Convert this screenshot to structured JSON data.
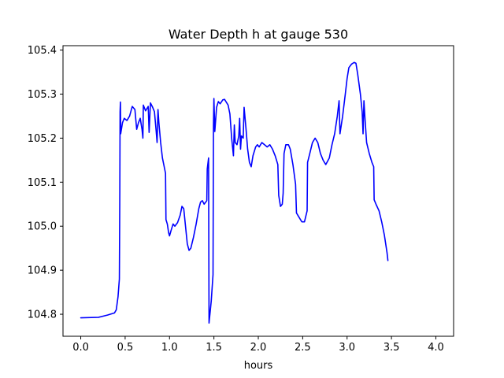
{
  "chart_data": {
    "type": "line",
    "title": "Water Depth h at gauge 530",
    "xlabel": "hours",
    "ylabel": "",
    "xlim": [
      -0.2,
      4.2
    ],
    "ylim": [
      104.75,
      105.41
    ],
    "x_ticks": [
      0.0,
      0.5,
      1.0,
      1.5,
      2.0,
      2.5,
      3.0,
      3.5,
      4.0
    ],
    "x_tick_labels": [
      "0.0",
      "0.5",
      "1.0",
      "1.5",
      "2.0",
      "2.5",
      "3.0",
      "3.5",
      "4.0"
    ],
    "y_ticks": [
      104.8,
      104.9,
      105.0,
      105.1,
      105.2,
      105.3,
      105.4
    ],
    "y_tick_labels": [
      "104.8",
      "104.9",
      "105.0",
      "105.1",
      "105.2",
      "105.3",
      "105.4"
    ],
    "grid": false,
    "series": [
      {
        "color": "#0000ff",
        "points": [
          [
            0.0,
            104.792
          ],
          [
            0.2,
            104.793
          ],
          [
            0.3,
            104.798
          ],
          [
            0.38,
            104.803
          ],
          [
            0.4,
            104.81
          ],
          [
            0.42,
            104.84
          ],
          [
            0.435,
            104.88
          ],
          [
            0.44,
            105.08
          ],
          [
            0.443,
            105.26
          ],
          [
            0.447,
            105.282
          ],
          [
            0.45,
            105.21
          ],
          [
            0.47,
            105.235
          ],
          [
            0.49,
            105.245
          ],
          [
            0.52,
            105.24
          ],
          [
            0.55,
            105.25
          ],
          [
            0.58,
            105.272
          ],
          [
            0.61,
            105.265
          ],
          [
            0.63,
            105.22
          ],
          [
            0.65,
            105.235
          ],
          [
            0.67,
            105.245
          ],
          [
            0.69,
            105.22
          ],
          [
            0.7,
            105.2
          ],
          [
            0.705,
            105.275
          ],
          [
            0.73,
            105.262
          ],
          [
            0.76,
            105.272
          ],
          [
            0.77,
            105.213
          ],
          [
            0.785,
            105.28
          ],
          [
            0.81,
            105.27
          ],
          [
            0.83,
            105.26
          ],
          [
            0.85,
            105.215
          ],
          [
            0.86,
            105.19
          ],
          [
            0.87,
            105.265
          ],
          [
            0.88,
            105.235
          ],
          [
            0.9,
            105.19
          ],
          [
            0.92,
            105.155
          ],
          [
            0.94,
            105.135
          ],
          [
            0.955,
            105.12
          ],
          [
            0.96,
            105.015
          ],
          [
            0.975,
            105.005
          ],
          [
            0.99,
            104.985
          ],
          [
            1.0,
            104.978
          ],
          [
            1.02,
            104.992
          ],
          [
            1.04,
            105.005
          ],
          [
            1.06,
            105.0
          ],
          [
            1.09,
            105.008
          ],
          [
            1.12,
            105.025
          ],
          [
            1.14,
            105.045
          ],
          [
            1.16,
            105.04
          ],
          [
            1.18,
            105.0
          ],
          [
            1.2,
            104.96
          ],
          [
            1.22,
            104.945
          ],
          [
            1.24,
            104.95
          ],
          [
            1.27,
            104.975
          ],
          [
            1.3,
            105.005
          ],
          [
            1.33,
            105.04
          ],
          [
            1.35,
            105.055
          ],
          [
            1.37,
            105.058
          ],
          [
            1.39,
            105.05
          ],
          [
            1.42,
            105.058
          ],
          [
            1.425,
            105.13
          ],
          [
            1.44,
            105.155
          ],
          [
            1.445,
            104.78
          ],
          [
            1.47,
            104.83
          ],
          [
            1.49,
            104.89
          ],
          [
            1.495,
            105.23
          ],
          [
            1.5,
            105.29
          ],
          [
            1.51,
            105.215
          ],
          [
            1.53,
            105.27
          ],
          [
            1.55,
            105.283
          ],
          [
            1.57,
            105.278
          ],
          [
            1.6,
            105.287
          ],
          [
            1.62,
            105.288
          ],
          [
            1.66,
            105.275
          ],
          [
            1.68,
            105.255
          ],
          [
            1.7,
            105.2
          ],
          [
            1.72,
            105.16
          ],
          [
            1.73,
            105.23
          ],
          [
            1.74,
            105.19
          ],
          [
            1.76,
            105.185
          ],
          [
            1.78,
            105.205
          ],
          [
            1.79,
            105.245
          ],
          [
            1.8,
            105.175
          ],
          [
            1.81,
            105.205
          ],
          [
            1.83,
            105.2
          ],
          [
            1.84,
            105.27
          ],
          [
            1.86,
            105.225
          ],
          [
            1.88,
            105.175
          ],
          [
            1.9,
            105.145
          ],
          [
            1.92,
            105.135
          ],
          [
            1.94,
            105.16
          ],
          [
            1.97,
            105.18
          ],
          [
            1.99,
            105.185
          ],
          [
            2.01,
            105.18
          ],
          [
            2.04,
            105.19
          ],
          [
            2.07,
            105.185
          ],
          [
            2.1,
            105.18
          ],
          [
            2.13,
            105.185
          ],
          [
            2.16,
            105.175
          ],
          [
            2.19,
            105.16
          ],
          [
            2.22,
            105.14
          ],
          [
            2.23,
            105.07
          ],
          [
            2.25,
            105.045
          ],
          [
            2.27,
            105.05
          ],
          [
            2.28,
            105.075
          ],
          [
            2.29,
            105.165
          ],
          [
            2.31,
            105.185
          ],
          [
            2.34,
            105.185
          ],
          [
            2.36,
            105.175
          ],
          [
            2.39,
            105.14
          ],
          [
            2.42,
            105.095
          ],
          [
            2.43,
            105.03
          ],
          [
            2.46,
            105.02
          ],
          [
            2.49,
            105.01
          ],
          [
            2.52,
            105.01
          ],
          [
            2.55,
            105.035
          ],
          [
            2.555,
            105.145
          ],
          [
            2.58,
            105.165
          ],
          [
            2.61,
            105.19
          ],
          [
            2.64,
            105.2
          ],
          [
            2.67,
            105.19
          ],
          [
            2.7,
            105.165
          ],
          [
            2.73,
            105.15
          ],
          [
            2.76,
            105.14
          ],
          [
            2.8,
            105.155
          ],
          [
            2.83,
            105.185
          ],
          [
            2.86,
            105.21
          ],
          [
            2.89,
            105.25
          ],
          [
            2.91,
            105.285
          ],
          [
            2.92,
            105.21
          ],
          [
            2.95,
            105.25
          ],
          [
            2.98,
            105.3
          ],
          [
            3.0,
            105.335
          ],
          [
            3.02,
            105.36
          ],
          [
            3.05,
            105.368
          ],
          [
            3.08,
            105.372
          ],
          [
            3.1,
            105.37
          ],
          [
            3.12,
            105.345
          ],
          [
            3.15,
            105.3
          ],
          [
            3.17,
            105.26
          ],
          [
            3.18,
            105.21
          ],
          [
            3.19,
            105.285
          ],
          [
            3.2,
            105.25
          ],
          [
            3.21,
            105.22
          ],
          [
            3.22,
            105.19
          ],
          [
            3.25,
            105.165
          ],
          [
            3.28,
            105.145
          ],
          [
            3.3,
            105.135
          ],
          [
            3.305,
            105.06
          ],
          [
            3.33,
            105.048
          ],
          [
            3.36,
            105.035
          ],
          [
            3.39,
            105.01
          ],
          [
            3.42,
            104.98
          ],
          [
            3.45,
            104.94
          ],
          [
            3.46,
            104.922
          ]
        ]
      }
    ]
  }
}
